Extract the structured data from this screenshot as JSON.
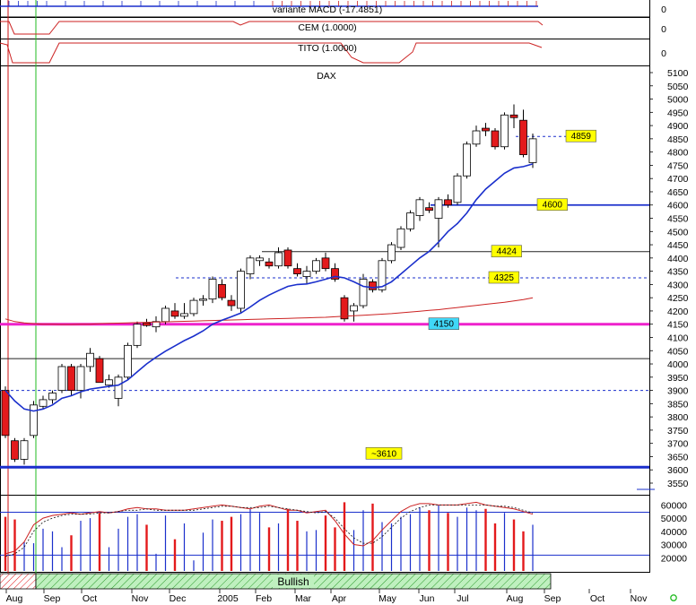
{
  "indicators": {
    "macd": {
      "label": "variante MACD (-17.4851)",
      "zero": "0"
    },
    "cem": {
      "label": "CEM (1.0000)",
      "zero": "0"
    },
    "tito": {
      "label": "TITO (1.0000)",
      "zero": "0"
    }
  },
  "status_label": "Bullish",
  "colors": {
    "bull": "#ffffff",
    "bear": "#e31a1c",
    "ma_short": "#1a2fcc",
    "ma_long": "#cc2222",
    "level_magenta": "#ee22cc",
    "level_blue": "#1a2fcc",
    "label_yellow": "#ffff00",
    "label_cyan": "#40d8f8",
    "status_green": "#bff0bf"
  },
  "chart_data": {
    "type": "candlestick",
    "title": "DAX",
    "months": [
      "Aug",
      "Sep",
      "Oct",
      "Nov",
      "Dec",
      "2005",
      "Feb",
      "Mar",
      "Apr",
      "May",
      "Jun",
      "Jul",
      "Aug",
      "Sep",
      "Oct",
      "Nov"
    ],
    "y_ticks": [
      5100,
      5050,
      5000,
      4950,
      4900,
      4850,
      4800,
      4750,
      4700,
      4650,
      4600,
      4550,
      4500,
      4450,
      4400,
      4350,
      4300,
      4250,
      4200,
      4150,
      4100,
      4050,
      4000,
      3950,
      3900,
      3850,
      3800,
      3750,
      3700,
      3650,
      3600,
      3550
    ],
    "ylim": [
      3520,
      5140
    ],
    "grid": false,
    "levels": [
      {
        "value": 4859,
        "label": "4859"
      },
      {
        "value": 4600,
        "label": "4600"
      },
      {
        "value": 4424,
        "label": "4424"
      },
      {
        "value": 4325,
        "label": "4325"
      },
      {
        "value": 4150,
        "label": "4150"
      },
      {
        "value": 4020
      },
      {
        "value": 3900
      },
      {
        "value": 3610,
        "label": "~3610"
      }
    ],
    "candles": [
      {
        "o": 3900,
        "h": 3915,
        "l": 3720,
        "c": 3730
      },
      {
        "o": 3710,
        "h": 3720,
        "l": 3630,
        "c": 3640
      },
      {
        "o": 3640,
        "h": 3720,
        "l": 3620,
        "c": 3710
      },
      {
        "o": 3730,
        "h": 3860,
        "l": 3720,
        "c": 3845
      },
      {
        "o": 3840,
        "h": 3880,
        "l": 3830,
        "c": 3865
      },
      {
        "o": 3865,
        "h": 3900,
        "l": 3850,
        "c": 3890
      },
      {
        "o": 3900,
        "h": 4000,
        "l": 3890,
        "c": 3990
      },
      {
        "o": 3990,
        "h": 4000,
        "l": 3880,
        "c": 3900
      },
      {
        "o": 3900,
        "h": 4000,
        "l": 3870,
        "c": 3990
      },
      {
        "o": 3990,
        "h": 4060,
        "l": 3970,
        "c": 4040
      },
      {
        "o": 4020,
        "h": 4030,
        "l": 3930,
        "c": 3930
      },
      {
        "o": 3920,
        "h": 3960,
        "l": 3910,
        "c": 3940
      },
      {
        "o": 3870,
        "h": 3960,
        "l": 3840,
        "c": 3950
      },
      {
        "o": 3950,
        "h": 4080,
        "l": 3940,
        "c": 4070
      },
      {
        "o": 4070,
        "h": 4160,
        "l": 4060,
        "c": 4150
      },
      {
        "o": 4155,
        "h": 4170,
        "l": 4140,
        "c": 4145
      },
      {
        "o": 4140,
        "h": 4180,
        "l": 4120,
        "c": 4160
      },
      {
        "o": 4160,
        "h": 4220,
        "l": 4150,
        "c": 4210
      },
      {
        "o": 4200,
        "h": 4230,
        "l": 4170,
        "c": 4180
      },
      {
        "o": 4180,
        "h": 4230,
        "l": 4170,
        "c": 4190
      },
      {
        "o": 4190,
        "h": 4250,
        "l": 4180,
        "c": 4240
      },
      {
        "o": 4240,
        "h": 4260,
        "l": 4220,
        "c": 4245
      },
      {
        "o": 4245,
        "h": 4330,
        "l": 4230,
        "c": 4320
      },
      {
        "o": 4300,
        "h": 4320,
        "l": 4240,
        "c": 4250
      },
      {
        "o": 4240,
        "h": 4260,
        "l": 4200,
        "c": 4220
      },
      {
        "o": 4210,
        "h": 4360,
        "l": 4190,
        "c": 4350
      },
      {
        "o": 4340,
        "h": 4410,
        "l": 4320,
        "c": 4400
      },
      {
        "o": 4390,
        "h": 4410,
        "l": 4370,
        "c": 4400
      },
      {
        "o": 4385,
        "h": 4400,
        "l": 4360,
        "c": 4370
      },
      {
        "o": 4370,
        "h": 4440,
        "l": 4360,
        "c": 4420
      },
      {
        "o": 4430,
        "h": 4440,
        "l": 4360,
        "c": 4370
      },
      {
        "o": 4360,
        "h": 4380,
        "l": 4330,
        "c": 4340
      },
      {
        "o": 4330,
        "h": 4370,
        "l": 4300,
        "c": 4350
      },
      {
        "o": 4350,
        "h": 4400,
        "l": 4340,
        "c": 4390
      },
      {
        "o": 4400,
        "h": 4420,
        "l": 4350,
        "c": 4360
      },
      {
        "o": 4360,
        "h": 4380,
        "l": 4310,
        "c": 4320
      },
      {
        "o": 4250,
        "h": 4260,
        "l": 4160,
        "c": 4170
      },
      {
        "o": 4200,
        "h": 4230,
        "l": 4160,
        "c": 4220
      },
      {
        "o": 4220,
        "h": 4340,
        "l": 4210,
        "c": 4320
      },
      {
        "o": 4310,
        "h": 4320,
        "l": 4270,
        "c": 4280
      },
      {
        "o": 4280,
        "h": 4400,
        "l": 4270,
        "c": 4390
      },
      {
        "o": 4390,
        "h": 4460,
        "l": 4380,
        "c": 4450
      },
      {
        "o": 4440,
        "h": 4520,
        "l": 4430,
        "c": 4510
      },
      {
        "o": 4510,
        "h": 4580,
        "l": 4500,
        "c": 4570
      },
      {
        "o": 4560,
        "h": 4630,
        "l": 4540,
        "c": 4620
      },
      {
        "o": 4590,
        "h": 4610,
        "l": 4570,
        "c": 4580
      },
      {
        "o": 4550,
        "h": 4630,
        "l": 4440,
        "c": 4620
      },
      {
        "o": 4620,
        "h": 4640,
        "l": 4590,
        "c": 4600
      },
      {
        "o": 4610,
        "h": 4720,
        "l": 4600,
        "c": 4710
      },
      {
        "o": 4710,
        "h": 4840,
        "l": 4700,
        "c": 4830
      },
      {
        "o": 4830,
        "h": 4900,
        "l": 4820,
        "c": 4880
      },
      {
        "o": 4890,
        "h": 4910,
        "l": 4860,
        "c": 4880
      },
      {
        "o": 4880,
        "h": 4890,
        "l": 4810,
        "c": 4820
      },
      {
        "o": 4820,
        "h": 4950,
        "l": 4810,
        "c": 4940
      },
      {
        "o": 4940,
        "h": 4980,
        "l": 4890,
        "c": 4930
      },
      {
        "o": 4920,
        "h": 4960,
        "l": 4780,
        "c": 4790
      },
      {
        "o": 4760,
        "h": 4870,
        "l": 4740,
        "c": 4850
      }
    ],
    "ma_short": [
      3900,
      3860,
      3830,
      3822,
      3830,
      3845,
      3870,
      3880,
      3895,
      3905,
      3910,
      3915,
      3920,
      3940,
      3970,
      4000,
      4025,
      4048,
      4068,
      4088,
      4105,
      4125,
      4150,
      4165,
      4178,
      4192,
      4215,
      4240,
      4260,
      4277,
      4293,
      4300,
      4302,
      4310,
      4320,
      4330,
      4325,
      4310,
      4293,
      4288,
      4292,
      4310,
      4340,
      4370,
      4400,
      4425,
      4460,
      4500,
      4530,
      4570,
      4620,
      4660,
      4690,
      4720,
      4740,
      4745,
      4755
    ],
    "ma_long": [
      4170,
      4160,
      4155,
      4152,
      4150,
      4150,
      4149,
      4149,
      4150,
      4150,
      4152,
      4153,
      4154,
      4155,
      4156,
      4157,
      4158,
      4159,
      4160,
      4161,
      4162,
      4163,
      4164,
      4165,
      4166,
      4167,
      4168,
      4169,
      4170,
      4171,
      4172,
      4173,
      4174,
      4175,
      4176,
      4178,
      4180,
      4182,
      4184,
      4186,
      4188,
      4190,
      4193,
      4196,
      4199,
      4202,
      4205,
      4209,
      4213,
      4217,
      4221,
      4225,
      4229,
      4233,
      4238,
      4243,
      4250
    ],
    "volume_ticks": [
      60000,
      50000,
      40000,
      30000,
      20000
    ],
    "volume_lim": [
      10000,
      65000
    ],
    "volume": [
      51000,
      49000,
      32000,
      31000,
      42000,
      40000,
      28000,
      37000,
      48000,
      50000,
      54000,
      28000,
      42000,
      51000,
      53000,
      45000,
      23000,
      52000,
      34000,
      46000,
      18000,
      39000,
      49000,
      48000,
      51000,
      53000,
      57000,
      54000,
      43000,
      46000,
      57000,
      48000,
      40000,
      41000,
      52000,
      43000,
      62000,
      41000,
      56000,
      61000,
      47000,
      46000,
      51000,
      53000,
      58000,
      56000,
      60000,
      54000,
      51000,
      58000,
      56000,
      57000,
      46000,
      54000,
      49000,
      40000,
      45000
    ],
    "osc_red": [
      23000,
      25000,
      32000,
      45000,
      50000,
      52000,
      53000,
      54000,
      53000,
      54000,
      55000,
      54000,
      55000,
      57000,
      58000,
      57000,
      57000,
      56000,
      56000,
      56000,
      57000,
      58000,
      59000,
      60000,
      59000,
      58000,
      57000,
      59000,
      60000,
      58000,
      56000,
      56000,
      54000,
      55000,
      56000,
      48000,
      38000,
      30000,
      29000,
      33000,
      41000,
      48000,
      55000,
      59000,
      61000,
      61000,
      60000,
      60000,
      60000,
      61000,
      62000,
      60000,
      59000,
      58000,
      57000,
      55000,
      53000
    ],
    "osc_dash": [
      21000,
      23000,
      28000,
      40000,
      47000,
      50000,
      52000,
      53000,
      53000,
      53000,
      54000,
      54000,
      55000,
      56000,
      56000,
      57000,
      56000,
      56000,
      56000,
      56000,
      56000,
      57000,
      58000,
      59000,
      59000,
      58000,
      58000,
      58000,
      59000,
      58000,
      57000,
      56000,
      55000,
      54000,
      55000,
      50000,
      42000,
      35000,
      31000,
      31000,
      36000,
      43000,
      50000,
      55000,
      58000,
      60000,
      60000,
      60000,
      60000,
      60000,
      60000,
      60000,
      59000,
      59000,
      58000,
      56000,
      54000
    ]
  }
}
